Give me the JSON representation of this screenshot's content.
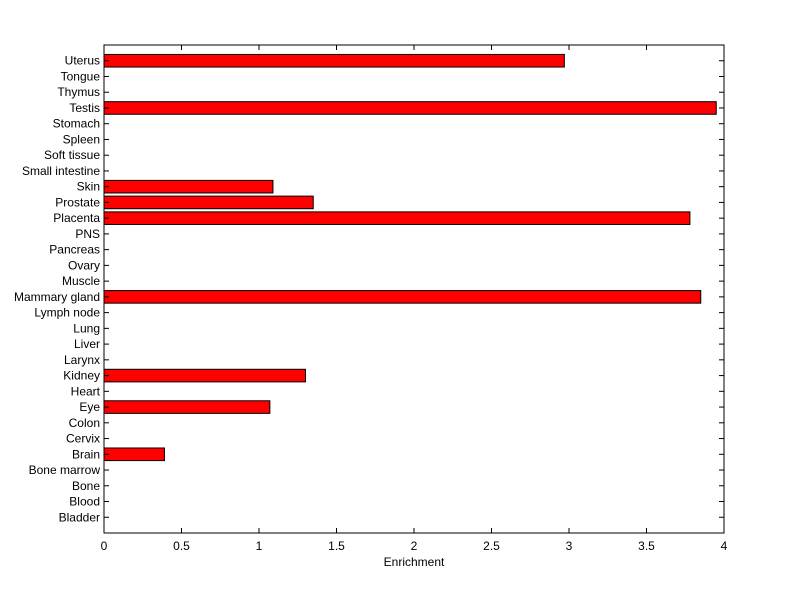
{
  "chart_data": {
    "type": "bar",
    "orientation": "horizontal",
    "categories": [
      "Uterus",
      "Tongue",
      "Thymus",
      "Testis",
      "Stomach",
      "Spleen",
      "Soft tissue",
      "Small intestine",
      "Skin",
      "Prostate",
      "Placenta",
      "PNS",
      "Pancreas",
      "Ovary",
      "Muscle",
      "Mammary gland",
      "Lymph node",
      "Lung",
      "Liver",
      "Larynx",
      "Kidney",
      "Heart",
      "Eye",
      "Colon",
      "Cervix",
      "Brain",
      "Bone marrow",
      "Bone",
      "Blood",
      "Bladder"
    ],
    "values": [
      2.97,
      0,
      0,
      3.95,
      0,
      0,
      0,
      0,
      1.09,
      1.35,
      3.78,
      0,
      0,
      0,
      0,
      3.85,
      0,
      0,
      0,
      0,
      1.3,
      0,
      1.07,
      0,
      0,
      0.39,
      0,
      0,
      0,
      0
    ],
    "xlabel": "Enrichment",
    "ylabel": "",
    "title": "",
    "xlim": [
      0,
      4
    ],
    "xticks": [
      "0",
      "0.5",
      "1",
      "1.5",
      "2",
      "2.5",
      "3",
      "3.5",
      "4"
    ],
    "bar_color": "#ff0000",
    "grid": false,
    "legend": "none"
  }
}
